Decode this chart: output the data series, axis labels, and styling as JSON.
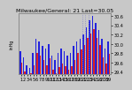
{
  "title": "Milwaukee/General: 21 Last=30.05",
  "background_color": "#c8c8c8",
  "plot_bg": "#c8c8c8",
  "ylim": [
    29.35,
    30.65
  ],
  "yticks": [
    29.4,
    29.6,
    29.8,
    30.0,
    30.2,
    30.4,
    30.6
  ],
  "ytick_labels": [
    "29.4",
    "29.6",
    "29.8",
    "30.0",
    "30.2",
    "30.4",
    "30.6"
  ],
  "dotted_lines": [
    19.5,
    20.5,
    21.5
  ],
  "highs": [
    29.85,
    29.72,
    29.55,
    29.48,
    29.8,
    30.1,
    30.05,
    29.95,
    29.9,
    30.0,
    29.75,
    29.65,
    29.8,
    29.9,
    29.85,
    29.75,
    29.8,
    29.95,
    30.05,
    30.1,
    30.2,
    30.35,
    30.5,
    30.6,
    30.45,
    30.3,
    30.1,
    29.9,
    30.05
  ],
  "lows": [
    29.6,
    29.42,
    29.3,
    29.38,
    29.55,
    29.8,
    29.75,
    29.65,
    29.55,
    29.7,
    29.45,
    29.38,
    29.5,
    29.58,
    29.52,
    29.45,
    29.52,
    29.65,
    29.8,
    29.88,
    29.98,
    30.12,
    30.22,
    30.32,
    30.12,
    29.98,
    29.72,
    29.58,
    29.78
  ],
  "high_color": "#2222dd",
  "low_color": "#dd2222",
  "title_fontsize": 4.5,
  "tick_fontsize": 3.5,
  "n_bars": 29,
  "xlabel_step": 1
}
